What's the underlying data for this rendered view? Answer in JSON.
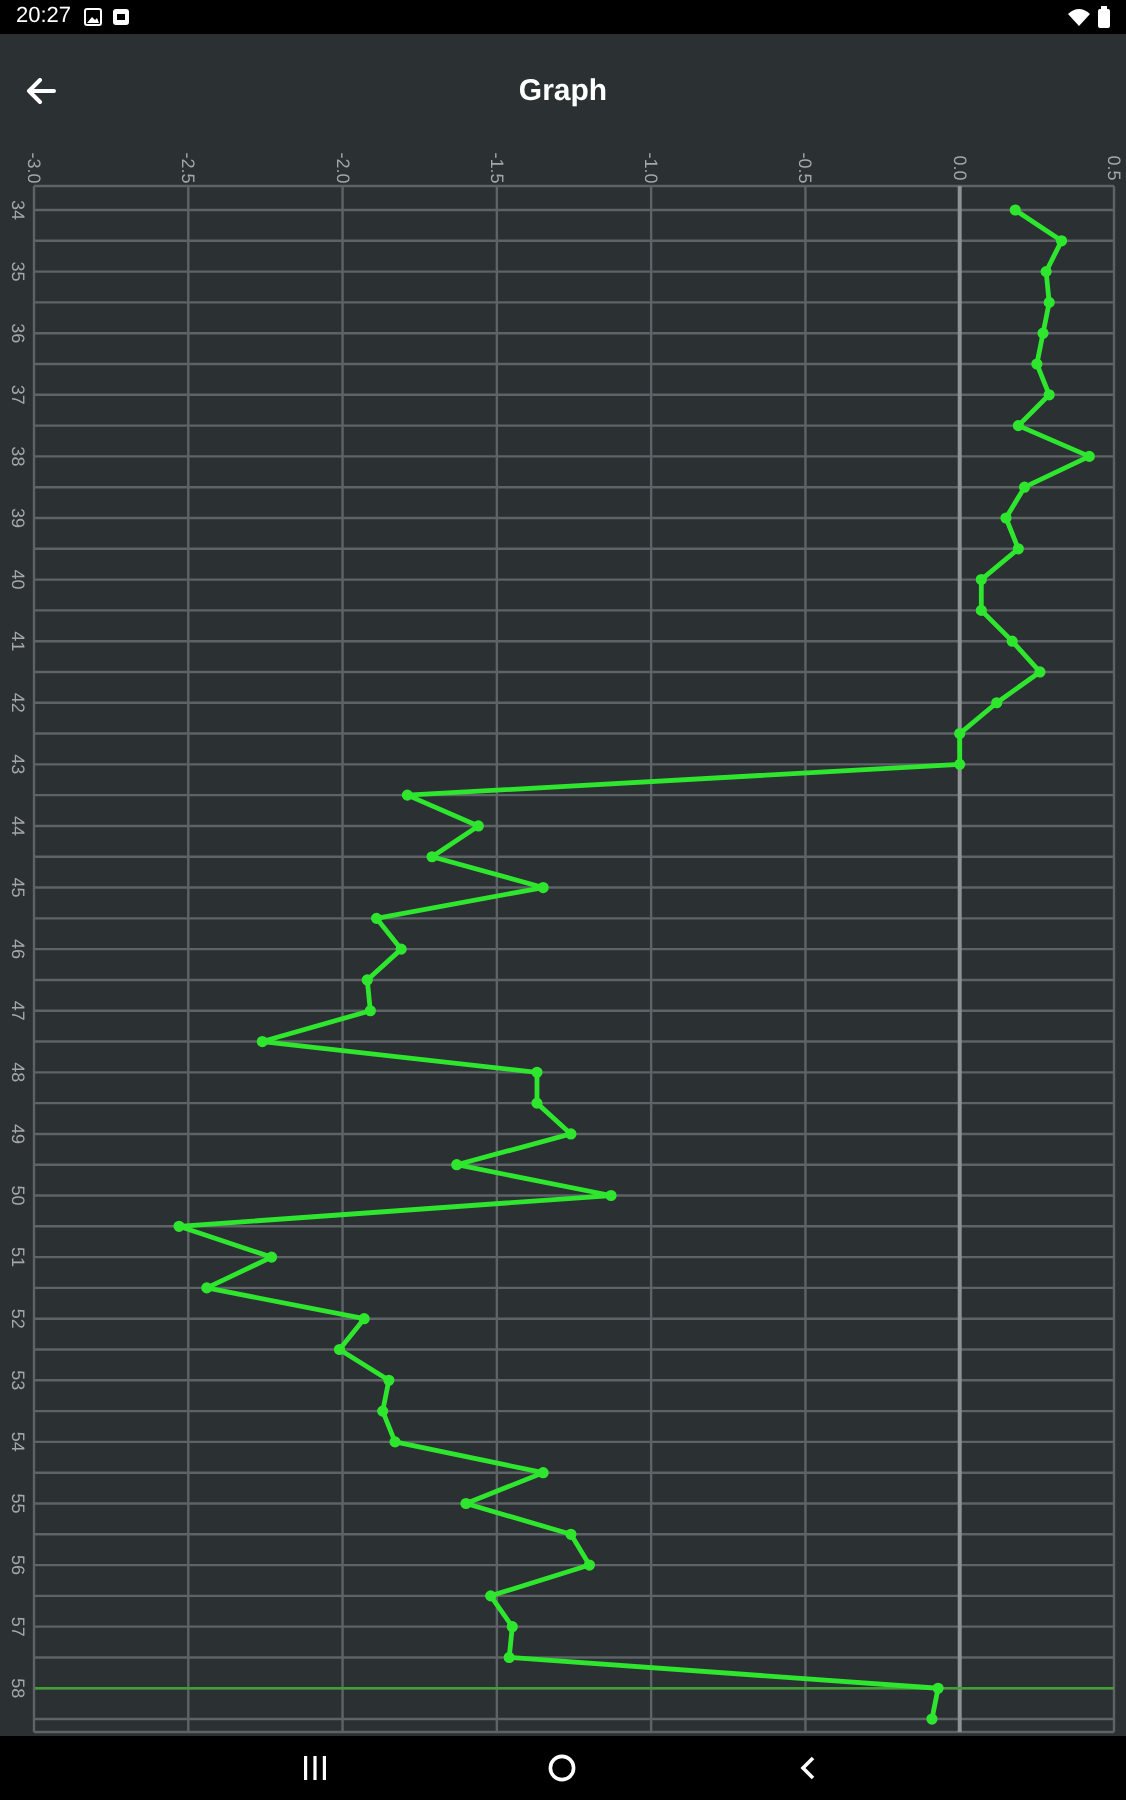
{
  "chart_data": {
    "type": "line",
    "title": "Graph",
    "orientation": "horizontal",
    "categories": [
      "34",
      null,
      "35",
      null,
      "36",
      null,
      "37",
      null,
      "38",
      null,
      "39",
      null,
      "40",
      null,
      "41",
      null,
      "42",
      null,
      "43",
      null,
      "44",
      null,
      "45",
      null,
      "46",
      null,
      "47",
      null,
      "48",
      null,
      "49",
      null,
      "50",
      null,
      "51",
      null,
      "52",
      null,
      "53",
      null,
      "54",
      null,
      "55",
      null,
      "56",
      null,
      "57",
      null,
      "58",
      null
    ],
    "values": [
      0.18,
      0.33,
      0.28,
      0.29,
      0.27,
      0.25,
      0.29,
      0.19,
      0.42,
      0.21,
      0.15,
      0.19,
      0.07,
      0.07,
      0.17,
      0.26,
      0.12,
      0.0,
      0.0,
      -1.79,
      -1.56,
      -1.71,
      -1.35,
      -1.89,
      -1.81,
      -1.92,
      -1.91,
      -2.26,
      -1.37,
      -1.37,
      -1.26,
      -1.63,
      -1.13,
      -2.53,
      -2.23,
      -2.44,
      -1.93,
      -2.01,
      -1.85,
      -1.87,
      -1.83,
      -1.35,
      -1.6,
      -1.26,
      -1.2,
      -1.52,
      -1.45,
      -1.46,
      -0.07,
      -0.09
    ],
    "color": "#2ee62e",
    "xlim": [
      -3,
      0.5
    ],
    "xticks": [
      {
        "value": -3,
        "label": "-3.0"
      },
      {
        "value": -2.5,
        "label": "-2.5"
      },
      {
        "value": -2,
        "label": "-2.0"
      },
      {
        "value": -1.5,
        "label": "-1.5"
      },
      {
        "value": -1,
        "label": "-1.0"
      },
      {
        "value": -0.5,
        "label": "-0.5"
      },
      {
        "value": 0,
        "label": "0.0"
      },
      {
        "value": 0.5,
        "label": "0.5"
      }
    ],
    "grid": true,
    "marker": "circle",
    "ref_lines": [
      {
        "axis": "x",
        "value": 0,
        "color": "#8e9294"
      },
      {
        "axis": "y",
        "value": "58",
        "color": "#3f9f35"
      }
    ],
    "annotations": [
      "20:27"
    ]
  }
}
